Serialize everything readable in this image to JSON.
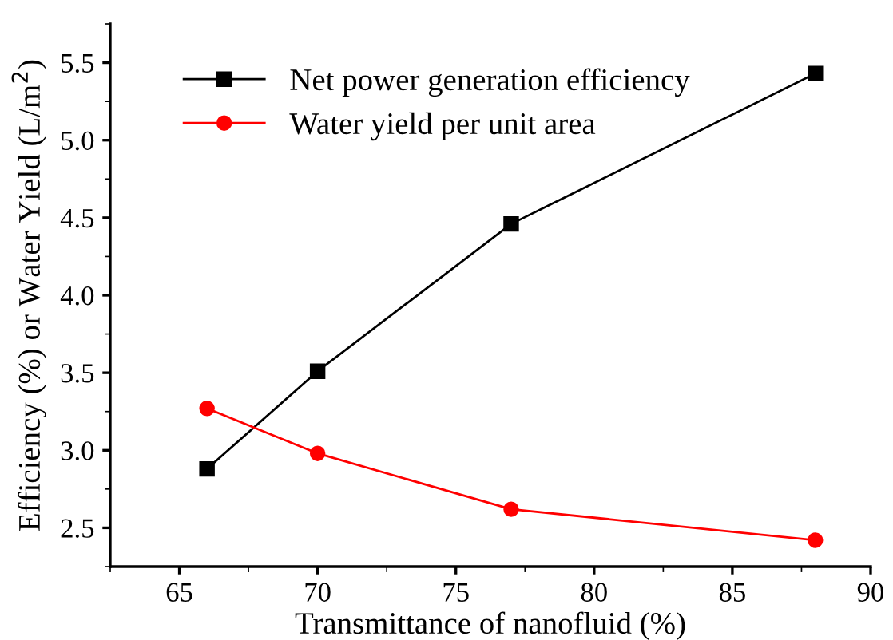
{
  "chart_data": {
    "type": "line",
    "xlabel": "Transmittance of nanofluid (%)",
    "ylabel": "Efficiency (%) or Water Yield (L/m$^{2}$)",
    "x": [
      66,
      70,
      77,
      88
    ],
    "series": [
      {
        "name": "Net power generation efficiency",
        "color": "#000000",
        "marker": "square",
        "values": [
          2.88,
          3.51,
          4.46,
          5.43
        ]
      },
      {
        "name": "Water yield per unit area",
        "color": "#ff0000",
        "marker": "circle",
        "values": [
          3.27,
          2.98,
          2.62,
          2.42
        ]
      }
    ],
    "xlim": [
      62.5,
      90
    ],
    "xticks": [
      65,
      70,
      75,
      80,
      85,
      90
    ],
    "ylim": [
      2.25,
      5.75
    ],
    "yticks": [
      2.5,
      {
        "value": 3,
        "label": "3.0"
      },
      3.5,
      {
        "value": 4,
        "label": "4.0"
      },
      4.5,
      {
        "value": 5,
        "label": "5.0"
      },
      5.5
    ],
    "grid": false,
    "legend": "top left",
    "line_style": "solid"
  }
}
